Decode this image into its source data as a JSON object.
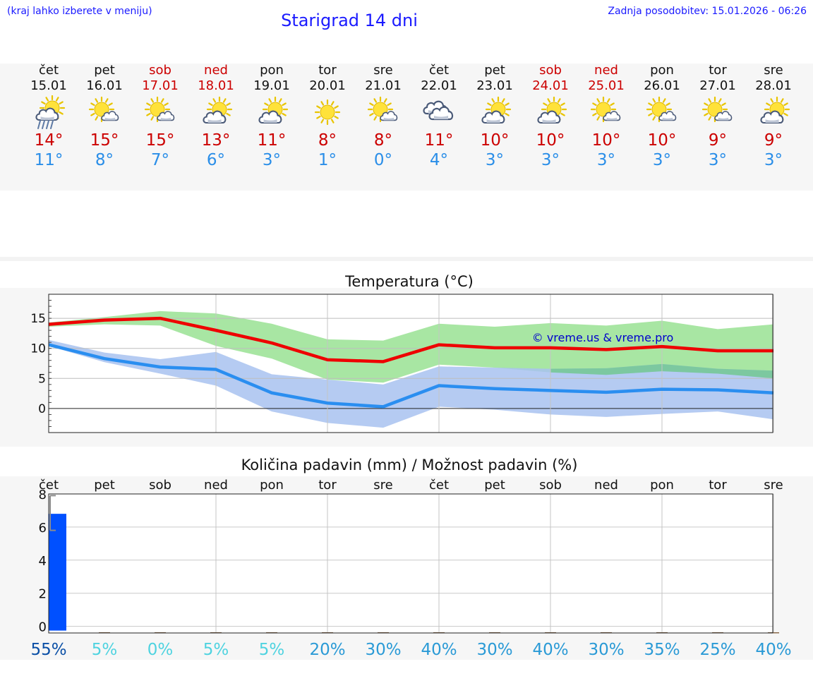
{
  "header": {
    "hint": "(kraj lahko izberete v meniju)",
    "title": "Starigrad 14 dni",
    "updated": "Zadnja posodobitev: 15.01.2026 - 06:26"
  },
  "colors": {
    "max": "#ee0000",
    "min": "#2a8ef0",
    "max_band": "#a8e6a3",
    "min_band": "#a8c2f0",
    "overlap_band": "#7cc8a0",
    "bar": "#0050ff",
    "weekend": "#cc0000"
  },
  "days": [
    {
      "name": "čet",
      "date": "15.01",
      "weekend": false,
      "icon": "sun-cloud-rain-icon",
      "max": "14°",
      "min": "11°"
    },
    {
      "name": "pet",
      "date": "16.01",
      "weekend": false,
      "icon": "sun-small-cloud-icon",
      "max": "15°",
      "min": "8°"
    },
    {
      "name": "sob",
      "date": "17.01",
      "weekend": true,
      "icon": "sun-small-cloud-icon",
      "max": "15°",
      "min": "7°"
    },
    {
      "name": "ned",
      "date": "18.01",
      "weekend": true,
      "icon": "sun-cloud-icon",
      "max": "13°",
      "min": "6°"
    },
    {
      "name": "pon",
      "date": "19.01",
      "weekend": false,
      "icon": "sun-cloud-icon",
      "max": "11°",
      "min": "3°"
    },
    {
      "name": "tor",
      "date": "20.01",
      "weekend": false,
      "icon": "sun-icon",
      "max": "8°",
      "min": "1°"
    },
    {
      "name": "sre",
      "date": "21.01",
      "weekend": false,
      "icon": "sun-small-cloud-icon",
      "max": "8°",
      "min": "0°"
    },
    {
      "name": "čet",
      "date": "22.01",
      "weekend": false,
      "icon": "clouds-icon",
      "max": "11°",
      "min": "4°"
    },
    {
      "name": "pet",
      "date": "23.01",
      "weekend": false,
      "icon": "sun-cloud-icon",
      "max": "10°",
      "min": "3°"
    },
    {
      "name": "sob",
      "date": "24.01",
      "weekend": true,
      "icon": "sun-cloud-icon",
      "max": "10°",
      "min": "3°"
    },
    {
      "name": "ned",
      "date": "25.01",
      "weekend": true,
      "icon": "sun-small-cloud-icon",
      "max": "10°",
      "min": "3°"
    },
    {
      "name": "pon",
      "date": "26.01",
      "weekend": false,
      "icon": "sun-small-cloud-icon",
      "max": "10°",
      "min": "3°"
    },
    {
      "name": "tor",
      "date": "27.01",
      "weekend": false,
      "icon": "sun-small-cloud-icon",
      "max": "9°",
      "min": "3°"
    },
    {
      "name": "sre",
      "date": "28.01",
      "weekend": false,
      "icon": "sun-cloud-icon",
      "max": "9°",
      "min": "3°"
    }
  ],
  "chart_data": [
    {
      "type": "line",
      "title": "Temperatura (°C)",
      "ylabel": "°C",
      "ylim": [
        -4,
        19
      ],
      "yticks": [
        0,
        5,
        10,
        15
      ],
      "watermark": "© vreme.us & vreme.pro",
      "x": [
        0,
        1,
        2,
        3,
        4,
        5,
        6,
        7,
        8,
        9,
        10,
        11,
        12,
        13
      ],
      "series": [
        {
          "name": "max",
          "values": [
            14.0,
            14.7,
            15.0,
            13.0,
            10.9,
            8.1,
            7.8,
            10.6,
            10.1,
            10.1,
            9.8,
            10.3,
            9.6,
            9.6
          ]
        },
        {
          "name": "min",
          "values": [
            10.6,
            8.3,
            6.9,
            6.5,
            2.6,
            0.9,
            0.3,
            3.8,
            3.3,
            3.0,
            2.7,
            3.2,
            3.1,
            2.6
          ]
        }
      ],
      "bands": [
        {
          "name": "max-range",
          "low": [
            13.6,
            14.0,
            13.8,
            10.4,
            8.3,
            4.8,
            4.3,
            7.3,
            6.8,
            6.0,
            5.6,
            6.2,
            5.8,
            5.0
          ],
          "high": [
            14.3,
            15.2,
            16.2,
            15.8,
            14.1,
            11.5,
            11.3,
            14.1,
            13.6,
            14.2,
            13.8,
            14.6,
            13.2,
            14.0
          ]
        },
        {
          "name": "min-range",
          "low": [
            10.4,
            7.7,
            5.8,
            3.8,
            -0.5,
            -2.4,
            -3.2,
            0.3,
            -0.2,
            -1.0,
            -1.4,
            -0.9,
            -0.5,
            -1.8
          ],
          "high": [
            11.4,
            9.3,
            8.2,
            9.4,
            5.7,
            4.8,
            4.0,
            7.0,
            6.8,
            6.6,
            6.7,
            7.4,
            6.6,
            6.3
          ]
        }
      ]
    },
    {
      "type": "bar",
      "title": "Količina padavin (mm) / Možnost padavin (%)",
      "ylabel": "mm",
      "ylim": [
        -0.4,
        8
      ],
      "yticks": [
        0,
        2,
        4,
        6,
        8
      ],
      "categories": [
        "čet",
        "pet",
        "sob",
        "ned",
        "pon",
        "tor",
        "sre",
        "čet",
        "pet",
        "sob",
        "ned",
        "pon",
        "tor",
        "sre"
      ],
      "values": [
        6.8,
        0,
        0,
        0,
        0,
        0,
        0,
        0,
        0,
        0,
        0,
        0,
        0,
        0
      ],
      "error_range": [
        5.8,
        7.9
      ],
      "probabilities": [
        "55%",
        "5%",
        "0%",
        "5%",
        "5%",
        "20%",
        "30%",
        "40%",
        "30%",
        "40%",
        "30%",
        "35%",
        "25%",
        "40%"
      ],
      "probability_values": [
        55,
        5,
        0,
        5,
        5,
        20,
        30,
        40,
        30,
        40,
        30,
        35,
        25,
        40
      ]
    }
  ]
}
